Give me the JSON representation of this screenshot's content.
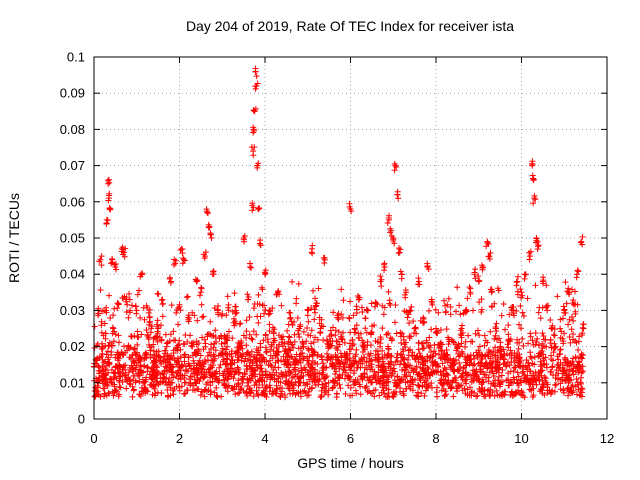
{
  "chart_data": {
    "type": "scatter",
    "title": "Day 204 of 2019, Rate Of TEC Index for receiver ista",
    "xlabel": "GPS time / hours",
    "ylabel": "ROTI / TECUs",
    "xlim": [
      0,
      12
    ],
    "ylim": [
      0,
      0.1
    ],
    "xticks": [
      "0",
      "2",
      "4",
      "6",
      "8",
      "10",
      "12"
    ],
    "yticks": [
      "0",
      "0.01",
      "0.02",
      "0.03",
      "0.04",
      "0.05",
      "0.06",
      "0.07",
      "0.08",
      "0.09",
      "0.1"
    ],
    "grid": true,
    "marker": "+",
    "color": "#ff0000",
    "series": [
      {
        "name": "ROTI",
        "points": [
          [
            0.05,
            0.008
          ],
          [
            0.1,
            0.03
          ],
          [
            0.15,
            0.044
          ],
          [
            0.2,
            0.02
          ],
          [
            0.25,
            0.012
          ],
          [
            0.3,
            0.055
          ],
          [
            0.33,
            0.065
          ],
          [
            0.35,
            0.061
          ],
          [
            0.38,
            0.058
          ],
          [
            0.4,
            0.043
          ],
          [
            0.45,
            0.025
          ],
          [
            0.5,
            0.042
          ],
          [
            0.55,
            0.032
          ],
          [
            0.6,
            0.015
          ],
          [
            0.65,
            0.047
          ],
          [
            0.7,
            0.046
          ],
          [
            0.75,
            0.033
          ],
          [
            0.8,
            0.02
          ],
          [
            0.9,
            0.014
          ],
          [
            1.0,
            0.03
          ],
          [
            1.1,
            0.04
          ],
          [
            1.2,
            0.018
          ],
          [
            1.3,
            0.028
          ],
          [
            1.4,
            0.012
          ],
          [
            1.5,
            0.025
          ],
          [
            1.6,
            0.033
          ],
          [
            1.7,
            0.02
          ],
          [
            1.8,
            0.038
          ],
          [
            1.9,
            0.043
          ],
          [
            2.0,
            0.031
          ],
          [
            2.05,
            0.047
          ],
          [
            2.1,
            0.044
          ],
          [
            2.2,
            0.028
          ],
          [
            2.3,
            0.02
          ],
          [
            2.4,
            0.038
          ],
          [
            2.5,
            0.035
          ],
          [
            2.6,
            0.045
          ],
          [
            2.65,
            0.057
          ],
          [
            2.7,
            0.053
          ],
          [
            2.75,
            0.05
          ],
          [
            2.8,
            0.04
          ],
          [
            2.9,
            0.03
          ],
          [
            3.0,
            0.018
          ],
          [
            3.1,
            0.022
          ],
          [
            3.2,
            0.015
          ],
          [
            3.3,
            0.027
          ],
          [
            3.4,
            0.02
          ],
          [
            3.5,
            0.05
          ],
          [
            3.6,
            0.033
          ],
          [
            3.65,
            0.042
          ],
          [
            3.7,
            0.059
          ],
          [
            3.72,
            0.074
          ],
          [
            3.74,
            0.08
          ],
          [
            3.76,
            0.085
          ],
          [
            3.78,
            0.096
          ],
          [
            3.8,
            0.092
          ],
          [
            3.82,
            0.07
          ],
          [
            3.85,
            0.058
          ],
          [
            3.9,
            0.048
          ],
          [
            4.0,
            0.04
          ],
          [
            4.1,
            0.03
          ],
          [
            4.2,
            0.024
          ],
          [
            4.3,
            0.035
          ],
          [
            4.4,
            0.022
          ],
          [
            4.5,
            0.018
          ],
          [
            4.6,
            0.028
          ],
          [
            4.7,
            0.015
          ],
          [
            4.8,
            0.025
          ],
          [
            4.9,
            0.02
          ],
          [
            5.0,
            0.03
          ],
          [
            5.1,
            0.047
          ],
          [
            5.2,
            0.032
          ],
          [
            5.3,
            0.025
          ],
          [
            5.4,
            0.044
          ],
          [
            5.5,
            0.02
          ],
          [
            5.6,
            0.015
          ],
          [
            5.7,
            0.028
          ],
          [
            5.8,
            0.022
          ],
          [
            5.9,
            0.018
          ],
          [
            6.0,
            0.058
          ],
          [
            6.1,
            0.025
          ],
          [
            6.2,
            0.033
          ],
          [
            6.3,
            0.02
          ],
          [
            6.4,
            0.03
          ],
          [
            6.5,
            0.024
          ],
          [
            6.6,
            0.032
          ],
          [
            6.7,
            0.038
          ],
          [
            6.8,
            0.042
          ],
          [
            6.9,
            0.055
          ],
          [
            6.95,
            0.052
          ],
          [
            7.0,
            0.05
          ],
          [
            7.05,
            0.07
          ],
          [
            7.1,
            0.062
          ],
          [
            7.15,
            0.046
          ],
          [
            7.2,
            0.04
          ],
          [
            7.3,
            0.035
          ],
          [
            7.4,
            0.03
          ],
          [
            7.5,
            0.025
          ],
          [
            7.6,
            0.038
          ],
          [
            7.7,
            0.028
          ],
          [
            7.8,
            0.042
          ],
          [
            7.9,
            0.033
          ],
          [
            8.0,
            0.025
          ],
          [
            8.1,
            0.02
          ],
          [
            8.2,
            0.018
          ],
          [
            8.3,
            0.022
          ],
          [
            8.4,
            0.015
          ],
          [
            8.5,
            0.02
          ],
          [
            8.6,
            0.025
          ],
          [
            8.7,
            0.03
          ],
          [
            8.8,
            0.035
          ],
          [
            8.9,
            0.04
          ],
          [
            9.0,
            0.038
          ],
          [
            9.1,
            0.042
          ],
          [
            9.2,
            0.049
          ],
          [
            9.25,
            0.045
          ],
          [
            9.3,
            0.035
          ],
          [
            9.4,
            0.025
          ],
          [
            9.5,
            0.02
          ],
          [
            9.6,
            0.018
          ],
          [
            9.7,
            0.022
          ],
          [
            9.8,
            0.03
          ],
          [
            9.9,
            0.038
          ],
          [
            10.0,
            0.035
          ],
          [
            10.1,
            0.04
          ],
          [
            10.2,
            0.045
          ],
          [
            10.25,
            0.07
          ],
          [
            10.28,
            0.066
          ],
          [
            10.3,
            0.061
          ],
          [
            10.35,
            0.05
          ],
          [
            10.4,
            0.048
          ],
          [
            10.5,
            0.038
          ],
          [
            10.6,
            0.03
          ],
          [
            10.7,
            0.025
          ],
          [
            10.8,
            0.02
          ],
          [
            10.9,
            0.018
          ],
          [
            11.0,
            0.03
          ],
          [
            11.1,
            0.035
          ],
          [
            11.2,
            0.032
          ],
          [
            11.3,
            0.04
          ],
          [
            11.4,
            0.049
          ],
          [
            11.45,
            0.025
          ]
        ]
      }
    ]
  }
}
